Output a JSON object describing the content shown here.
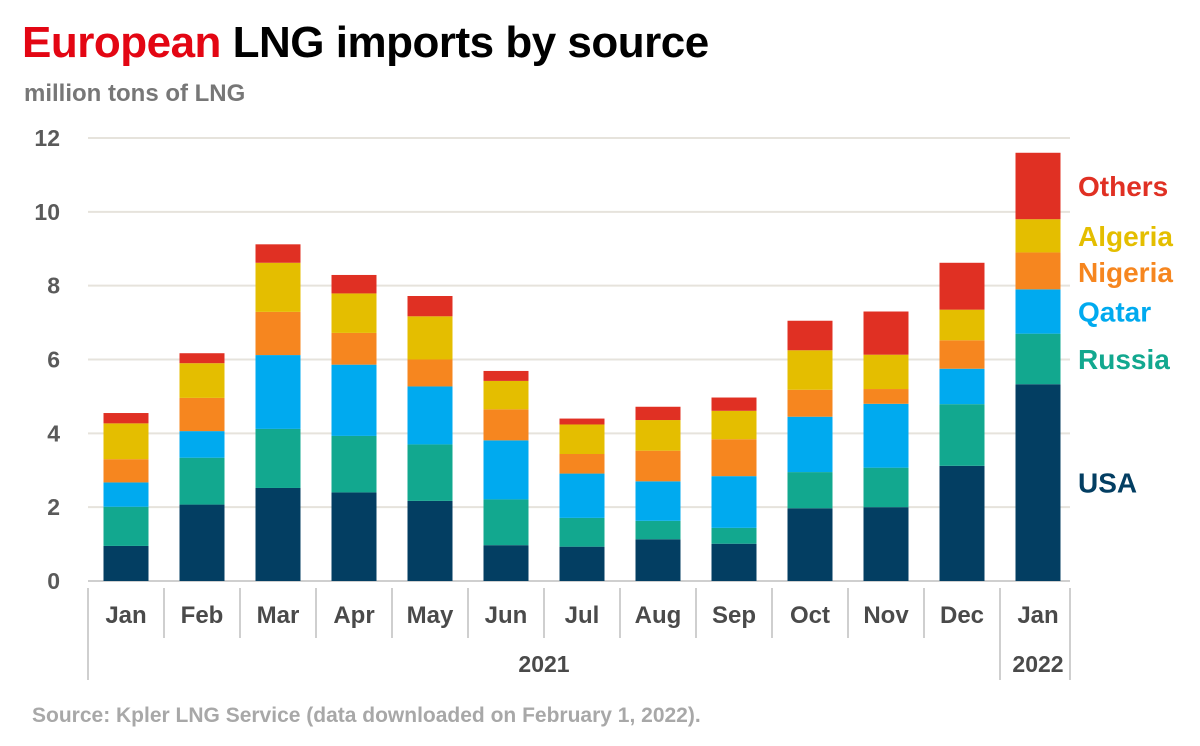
{
  "title": {
    "accent": "European",
    "rest": " LNG imports by source"
  },
  "subtitle": "million tons of LNG",
  "source": "Source: Kpler LNG Service (data downloaded on February 1, 2022).",
  "chart_data": {
    "type": "bar",
    "stacked": true,
    "ylim": [
      0,
      12
    ],
    "yticks": [
      0,
      2,
      4,
      6,
      8,
      10,
      12
    ],
    "grid": true,
    "legend_position": "right",
    "categories": [
      "Jan",
      "Feb",
      "Mar",
      "Apr",
      "May",
      "Jun",
      "Jul",
      "Aug",
      "Sep",
      "Oct",
      "Nov",
      "Dec",
      "Jan"
    ],
    "year_groups": [
      {
        "label": "2021",
        "count": 12
      },
      {
        "label": "2022",
        "count": 1
      }
    ],
    "series": [
      {
        "name": "USA",
        "color": "#033e62",
        "values": [
          0.95,
          2.07,
          2.52,
          2.4,
          2.17,
          0.97,
          0.93,
          1.13,
          1.01,
          1.97,
          2.0,
          3.12,
          5.33
        ]
      },
      {
        "name": "Russia",
        "color": "#12a88f",
        "values": [
          1.06,
          1.27,
          1.6,
          1.53,
          1.53,
          1.24,
          0.78,
          0.5,
          0.43,
          0.98,
          1.07,
          1.67,
          1.37
        ]
      },
      {
        "name": "Qatar",
        "color": "#00aaef",
        "values": [
          0.66,
          0.72,
          2.0,
          1.93,
          1.57,
          1.6,
          1.2,
          1.07,
          1.4,
          1.5,
          1.73,
          0.96,
          1.2
        ]
      },
      {
        "name": "Nigeria",
        "color": "#f6861f",
        "values": [
          0.63,
          0.9,
          1.17,
          0.86,
          0.73,
          0.84,
          0.53,
          0.83,
          1.0,
          0.73,
          0.4,
          0.77,
          1.0
        ]
      },
      {
        "name": "Algeria",
        "color": "#e4be00",
        "values": [
          0.97,
          0.94,
          1.33,
          1.07,
          1.17,
          0.77,
          0.8,
          0.83,
          0.77,
          1.07,
          0.93,
          0.83,
          0.9
        ]
      },
      {
        "name": "Others",
        "color": "#e03023",
        "values": [
          0.28,
          0.27,
          0.5,
          0.5,
          0.55,
          0.27,
          0.16,
          0.36,
          0.36,
          0.8,
          1.17,
          1.27,
          1.8
        ]
      }
    ]
  }
}
